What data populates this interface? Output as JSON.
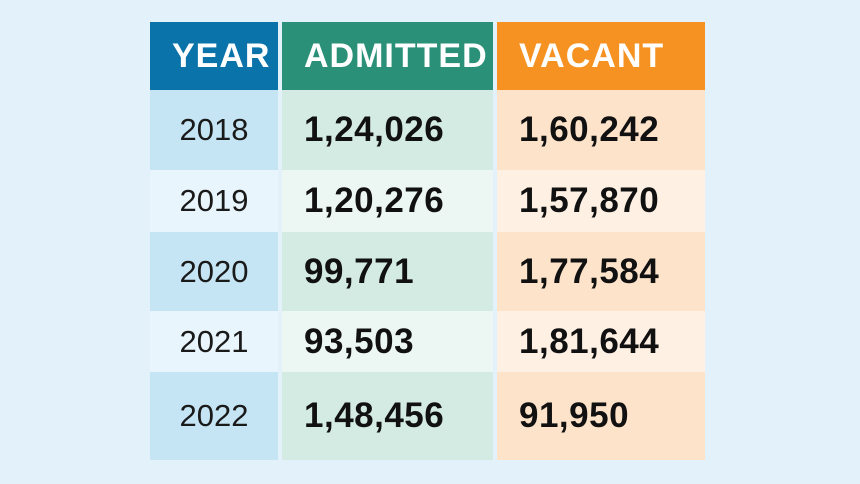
{
  "chart_data": {
    "type": "table",
    "columns": [
      "YEAR",
      "ADMITTED",
      "VACANT"
    ],
    "rows": [
      {
        "year": "2018",
        "admitted": "1,24,026",
        "vacant": "1,60,242"
      },
      {
        "year": "2019",
        "admitted": "1,20,276",
        "vacant": "1,57,870"
      },
      {
        "year": "2020",
        "admitted": "99,771",
        "vacant": "1,77,584"
      },
      {
        "year": "2021",
        "admitted": "93,503",
        "vacant": "1,81,644"
      },
      {
        "year": "2022",
        "admitted": "1,48,456",
        "vacant": "91,950"
      }
    ],
    "values": {
      "admitted": [
        124026,
        120276,
        99771,
        93503,
        148456
      ],
      "vacant": [
        160242,
        157870,
        177584,
        181644,
        91950
      ]
    }
  },
  "colors": {
    "page_background": "#e3f1fb",
    "header_year": "#0a73aa",
    "header_admitted": "#2a9078",
    "header_vacant": "#f59222",
    "year_dark": "#c5e5f5",
    "year_light": "#e8f5fc",
    "admitted_dark": "#d4ebe3",
    "admitted_light": "#ecf6f2",
    "vacant_dark": "#fde3ca",
    "vacant_light": "#fef1e4"
  }
}
